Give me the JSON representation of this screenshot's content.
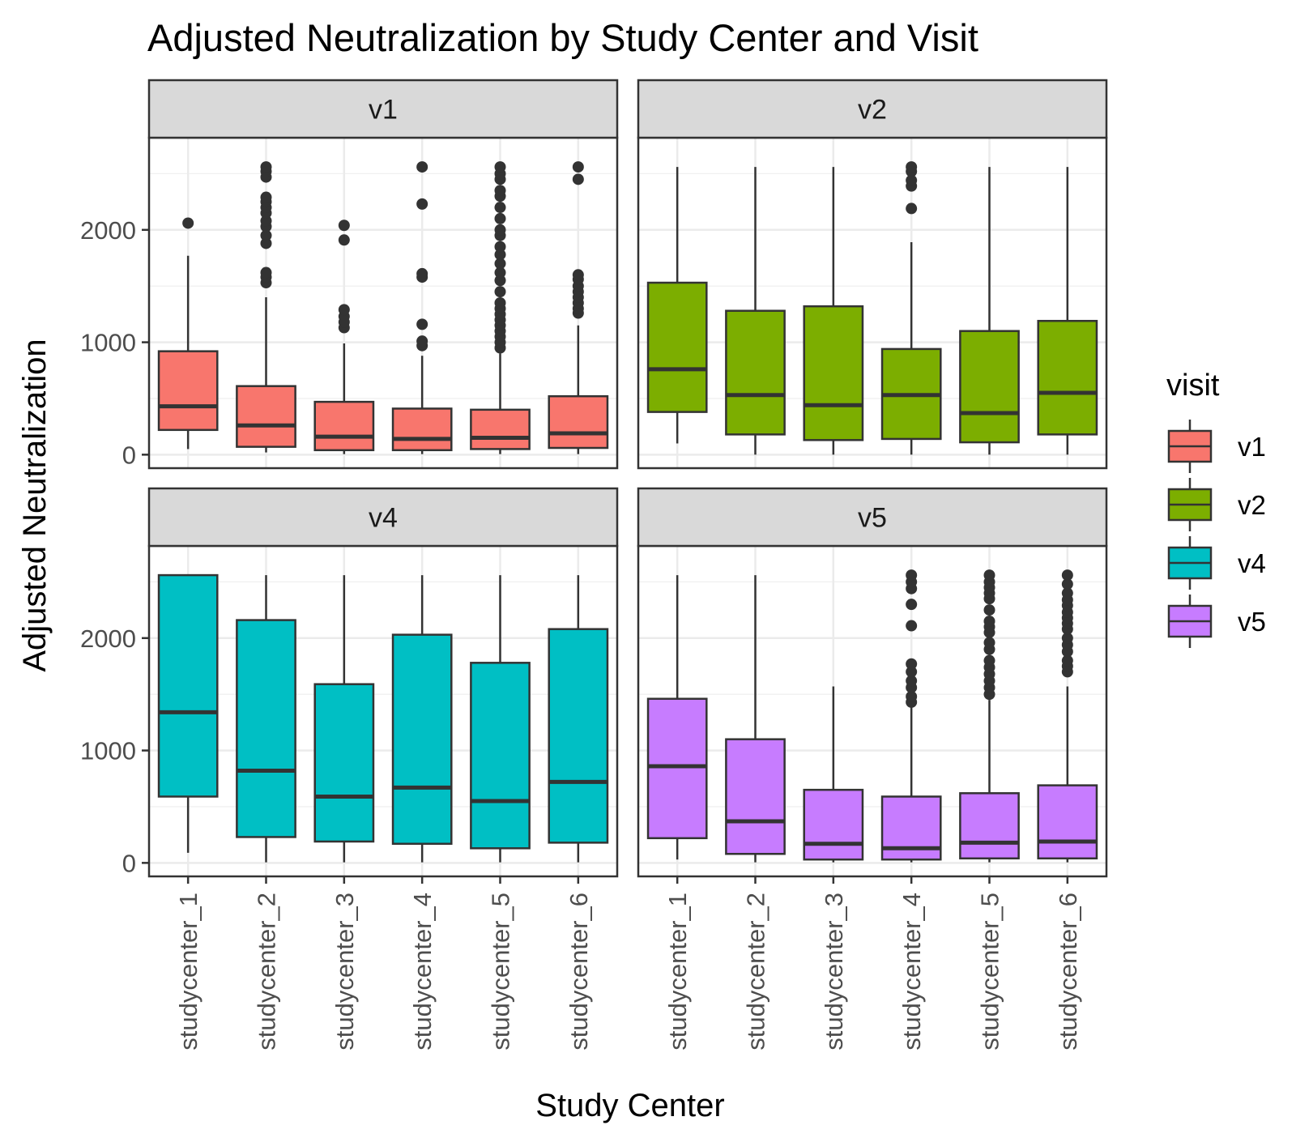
{
  "chart_data": {
    "type": "boxplot",
    "title": "Adjusted Neutralization by Study Center and Visit",
    "xlabel": "Study Center",
    "ylabel": "Adjusted Neutralization",
    "ylim": [
      -120,
      2820
    ],
    "yticks": [
      0,
      1000,
      2000
    ],
    "categories": [
      "studycenter_1",
      "studycenter_2",
      "studycenter_3",
      "studycenter_4",
      "studycenter_5",
      "studycenter_6"
    ],
    "grid": true,
    "legend": {
      "title": "visit",
      "position": "right",
      "entries": [
        {
          "label": "v1",
          "color": "#F8766D"
        },
        {
          "label": "v2",
          "color": "#7CAE00"
        },
        {
          "label": "v4",
          "color": "#00BFC4"
        },
        {
          "label": "v5",
          "color": "#C77CFF"
        }
      ]
    },
    "facets": [
      {
        "label": "v1",
        "color": "#F8766D",
        "boxes": [
          {
            "category": "studycenter_1",
            "whisker_low": 50,
            "q1": 220,
            "median": 430,
            "q3": 920,
            "whisker_high": 1770,
            "outliers": [
              2060
            ]
          },
          {
            "category": "studycenter_2",
            "whisker_low": 20,
            "q1": 70,
            "median": 260,
            "q3": 610,
            "whisker_high": 1400,
            "outliers": [
              1530,
              1580,
              1620,
              1880,
              1950,
              2030,
              2080,
              2150,
              2200,
              2250,
              2290,
              2470,
              2520,
              2560
            ]
          },
          {
            "category": "studycenter_3",
            "whisker_low": 5,
            "q1": 40,
            "median": 160,
            "q3": 470,
            "whisker_high": 990,
            "outliers": [
              1130,
              1180,
              1230,
              1290,
              1910,
              2040
            ]
          },
          {
            "category": "studycenter_4",
            "whisker_low": 5,
            "q1": 40,
            "median": 140,
            "q3": 410,
            "whisker_high": 880,
            "outliers": [
              970,
              1010,
              1160,
              1580,
              1610,
              2230,
              2560
            ]
          },
          {
            "category": "studycenter_5",
            "whisker_low": 5,
            "q1": 50,
            "median": 150,
            "q3": 400,
            "whisker_high": 900,
            "outliers": [
              950,
              1000,
              1050,
              1100,
              1150,
              1200,
              1250,
              1300,
              1350,
              1450,
              1550,
              1620,
              1700,
              1780,
              1850,
              1950,
              2000,
              2100,
              2200,
              2300,
              2350,
              2450,
              2500,
              2560
            ]
          },
          {
            "category": "studycenter_6",
            "whisker_low": 5,
            "q1": 60,
            "median": 190,
            "q3": 520,
            "whisker_high": 1150,
            "outliers": [
              1260,
              1300,
              1350,
              1400,
              1450,
              1500,
              1560,
              1600,
              2450,
              2560
            ]
          }
        ]
      },
      {
        "label": "v2",
        "color": "#7CAE00",
        "boxes": [
          {
            "category": "studycenter_1",
            "whisker_low": 100,
            "q1": 380,
            "median": 760,
            "q3": 1530,
            "whisker_high": 2560,
            "outliers": []
          },
          {
            "category": "studycenter_2",
            "whisker_low": 0,
            "q1": 180,
            "median": 530,
            "q3": 1280,
            "whisker_high": 2560,
            "outliers": []
          },
          {
            "category": "studycenter_3",
            "whisker_low": 0,
            "q1": 130,
            "median": 440,
            "q3": 1320,
            "whisker_high": 2560,
            "outliers": []
          },
          {
            "category": "studycenter_4",
            "whisker_low": 0,
            "q1": 140,
            "median": 530,
            "q3": 940,
            "whisker_high": 1890,
            "outliers": [
              2190,
              2390,
              2440,
              2520,
              2560
            ]
          },
          {
            "category": "studycenter_5",
            "whisker_low": 0,
            "q1": 110,
            "median": 370,
            "q3": 1100,
            "whisker_high": 2560,
            "outliers": []
          },
          {
            "category": "studycenter_6",
            "whisker_low": 0,
            "q1": 180,
            "median": 550,
            "q3": 1190,
            "whisker_high": 2560,
            "outliers": []
          }
        ]
      },
      {
        "label": "v4",
        "color": "#00BFC4",
        "boxes": [
          {
            "category": "studycenter_1",
            "whisker_low": 90,
            "q1": 590,
            "median": 1340,
            "q3": 2560,
            "whisker_high": 2560,
            "outliers": []
          },
          {
            "category": "studycenter_2",
            "whisker_low": 5,
            "q1": 230,
            "median": 820,
            "q3": 2160,
            "whisker_high": 2560,
            "outliers": []
          },
          {
            "category": "studycenter_3",
            "whisker_low": 5,
            "q1": 190,
            "median": 590,
            "q3": 1590,
            "whisker_high": 2560,
            "outliers": []
          },
          {
            "category": "studycenter_4",
            "whisker_low": 5,
            "q1": 170,
            "median": 670,
            "q3": 2030,
            "whisker_high": 2560,
            "outliers": []
          },
          {
            "category": "studycenter_5",
            "whisker_low": 5,
            "q1": 130,
            "median": 550,
            "q3": 1780,
            "whisker_high": 2560,
            "outliers": []
          },
          {
            "category": "studycenter_6",
            "whisker_low": 5,
            "q1": 180,
            "median": 720,
            "q3": 2080,
            "whisker_high": 2560,
            "outliers": []
          }
        ]
      },
      {
        "label": "v5",
        "color": "#C77CFF",
        "boxes": [
          {
            "category": "studycenter_1",
            "whisker_low": 30,
            "q1": 220,
            "median": 860,
            "q3": 1460,
            "whisker_high": 2560,
            "outliers": []
          },
          {
            "category": "studycenter_2",
            "whisker_low": 5,
            "q1": 80,
            "median": 370,
            "q3": 1100,
            "whisker_high": 2560,
            "outliers": []
          },
          {
            "category": "studycenter_3",
            "whisker_low": 5,
            "q1": 30,
            "median": 170,
            "q3": 650,
            "whisker_high": 1570,
            "outliers": []
          },
          {
            "category": "studycenter_4",
            "whisker_low": 5,
            "q1": 30,
            "median": 130,
            "q3": 590,
            "whisker_high": 1400,
            "outliers": [
              1430,
              1480,
              1560,
              1620,
              1700,
              1770,
              2110,
              2300,
              2440,
              2500,
              2560
            ]
          },
          {
            "category": "studycenter_5",
            "whisker_low": 5,
            "q1": 40,
            "median": 180,
            "q3": 620,
            "whisker_high": 1450,
            "outliers": [
              1500,
              1560,
              1620,
              1680,
              1740,
              1800,
              1900,
              1960,
              2050,
              2100,
              2150,
              2250,
              2350,
              2400,
              2450,
              2500,
              2560
            ]
          },
          {
            "category": "studycenter_6",
            "whisker_low": 5,
            "q1": 40,
            "median": 190,
            "q3": 690,
            "whisker_high": 1570,
            "outliers": [
              1700,
              1750,
              1800,
              1880,
              1940,
              2000,
              2080,
              2130,
              2180,
              2230,
              2290,
              2340,
              2400,
              2480,
              2560
            ]
          }
        ]
      }
    ]
  }
}
